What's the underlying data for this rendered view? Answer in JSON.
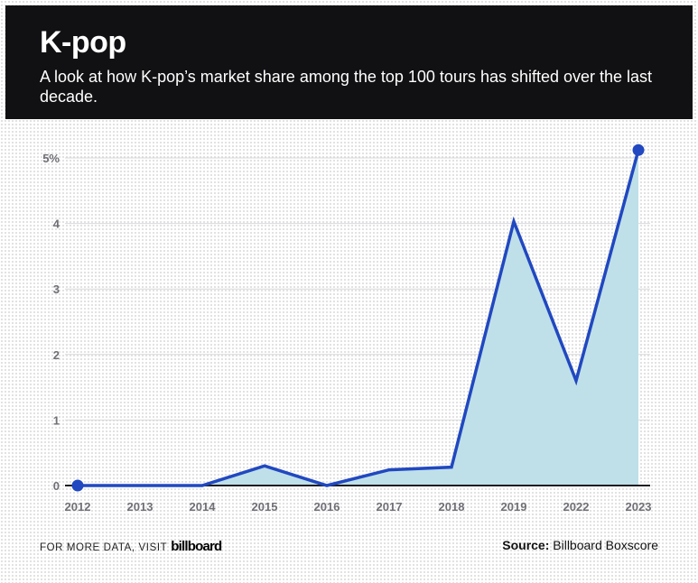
{
  "header": {
    "title": "K-pop",
    "subtitle": "A look at how K-pop’s market share among the top 100 tours has shifted over the last decade."
  },
  "footer": {
    "visit_text": "FOR MORE DATA, VISIT",
    "brand": "billboard",
    "source_label": "Source:",
    "source_value": " Billboard Boxscore"
  },
  "colors": {
    "line": "#2148c0",
    "area": "#bfe0e8",
    "header_bg": "#111113"
  },
  "chart_data": {
    "type": "area",
    "title": "K-pop",
    "x": [
      "2012",
      "2013",
      "2014",
      "2015",
      "2016",
      "2017",
      "2018",
      "2019",
      "2022",
      "2023"
    ],
    "series": [
      {
        "values": [
          0,
          0,
          0,
          0.3,
          0,
          0.24,
          0.28,
          4.03,
          1.6,
          5.12
        ]
      }
    ],
    "ylim": [
      0,
      5
    ],
    "yticks": [
      "0",
      "1",
      "2",
      "3",
      "4",
      "5%"
    ],
    "grid": true,
    "markers": "first-and-last"
  }
}
